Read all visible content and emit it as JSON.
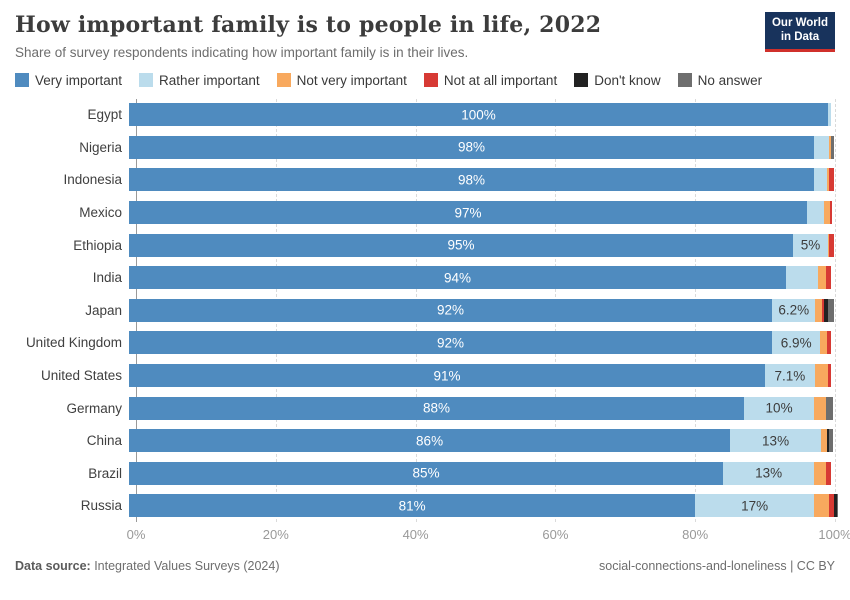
{
  "header": {
    "title": "How important family is to people in life, 2022",
    "subtitle": "Share of survey respondents indicating how important family is in their lives.",
    "logo": {
      "line1": "Our World",
      "line2": "in Data"
    }
  },
  "legend": {
    "items": [
      {
        "label": "Very important",
        "color": "#4f8bbf"
      },
      {
        "label": "Rather important",
        "color": "#bbdcec"
      },
      {
        "label": "Not very important",
        "color": "#f8a95e"
      },
      {
        "label": "Not at all important",
        "color": "#d73a34"
      },
      {
        "label": "Don't know",
        "color": "#222222"
      },
      {
        "label": "No answer",
        "color": "#6e6e6e"
      }
    ]
  },
  "chart_data": {
    "type": "bar",
    "stacked": true,
    "orientation": "horizontal",
    "unit": "%",
    "title": "How important family is to people in life, 2022",
    "xlabel": "",
    "ylabel": "",
    "xlim": [
      0,
      100
    ],
    "x_ticks": [
      "0%",
      "20%",
      "40%",
      "60%",
      "80%",
      "100%"
    ],
    "x_tick_values": [
      0,
      20,
      40,
      60,
      80,
      100
    ],
    "grid": "vertical-dashed",
    "legend_position": "top",
    "categories": [
      "Egypt",
      "Nigeria",
      "Indonesia",
      "Mexico",
      "Ethiopia",
      "India",
      "Japan",
      "United Kingdom",
      "United States",
      "Germany",
      "China",
      "Brazil",
      "Russia"
    ],
    "series": [
      {
        "name": "Very important",
        "color": "#4f8bbf",
        "values": [
          100,
          98,
          98,
          97,
          95,
          94,
          92,
          92,
          91,
          88,
          86,
          85,
          81
        ]
      },
      {
        "name": "Rather important",
        "color": "#bbdcec",
        "values": [
          0.4,
          2.2,
          1.8,
          2.4,
          5,
          4.5,
          6.2,
          6.9,
          7.1,
          10,
          13,
          13,
          17
        ]
      },
      {
        "name": "Not very important",
        "color": "#f8a95e",
        "values": [
          0,
          0.3,
          0.4,
          0.9,
          0.2,
          1.2,
          1.0,
          0.9,
          1.9,
          1.7,
          0.8,
          1.7,
          2.2
        ]
      },
      {
        "name": "Not at all important",
        "color": "#d73a34",
        "values": [
          0,
          0,
          0.7,
          0.3,
          0.6,
          0.8,
          0.3,
          0.7,
          0.4,
          0,
          0,
          0.8,
          0.6
        ]
      },
      {
        "name": "Don't know",
        "color": "#222222",
        "values": [
          0,
          0,
          0,
          0,
          0,
          0,
          0.5,
          0,
          0,
          0,
          0.3,
          0,
          0.5
        ]
      },
      {
        "name": "No answer",
        "color": "#6e6e6e",
        "values": [
          0,
          0.4,
          0,
          0,
          0,
          0,
          0.9,
          0,
          0,
          1.0,
          0.6,
          0,
          0.2
        ]
      }
    ],
    "bar_labels_primary": [
      "100%",
      "98%",
      "98%",
      "97%",
      "95%",
      "94%",
      "92%",
      "92%",
      "91%",
      "88%",
      "86%",
      "85%",
      "81%"
    ],
    "bar_labels_secondary": [
      "",
      "",
      "",
      "",
      "5%",
      "",
      "6.2%",
      "6.9%",
      "7.1%",
      "10%",
      "13%",
      "13%",
      "17%"
    ]
  },
  "footer": {
    "datasource_label": "Data source:",
    "datasource_text": " Integrated Values Surveys (2024)",
    "credit": "social-connections-and-loneliness | CC BY"
  }
}
